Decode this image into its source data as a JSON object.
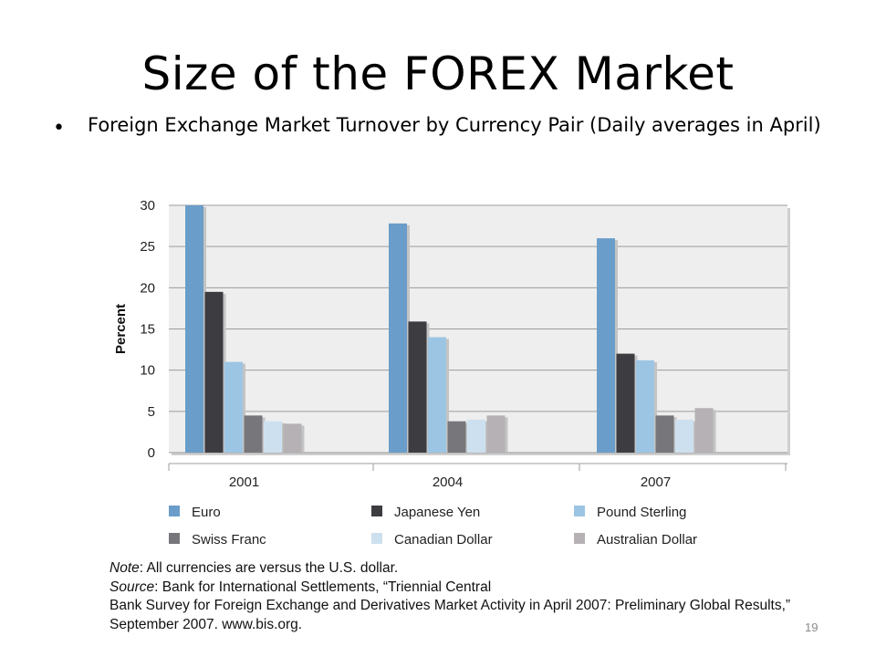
{
  "slide": {
    "title": "Size of the FOREX Market",
    "bullet": "Foreign Exchange Market Turnover by Currency Pair (Daily averages in April)",
    "note_label": "Note",
    "note_text": "All currencies are versus the U.S. dollar.",
    "source_label": "Source",
    "source_line1": "Bank for International Settlements, “Triennial Central",
    "source_line2": "Bank Survey for Foreign Exchange and Derivatives Market Activity in April 2007: Preliminary Global Results,”",
    "source_line3": "September 2007. www.bis.org.",
    "page_number": "19"
  },
  "chart_data": {
    "type": "bar",
    "title": "",
    "xlabel": "",
    "ylabel": "Percent",
    "ylim": [
      0,
      30
    ],
    "yticks": [
      0,
      5,
      10,
      15,
      20,
      25,
      30
    ],
    "grid": true,
    "legend_position": "bottom",
    "categories": [
      "2001",
      "2004",
      "2007"
    ],
    "series": [
      {
        "name": "Euro",
        "color": "#6a9dc9",
        "values": [
          30,
          27.8,
          26
        ]
      },
      {
        "name": "Japanese Yen",
        "color": "#3d3c41",
        "values": [
          19.5,
          15.9,
          12
        ]
      },
      {
        "name": "Pound Sterling",
        "color": "#9cc5e3",
        "values": [
          11,
          14,
          11.2
        ]
      },
      {
        "name": "Swiss Franc",
        "color": "#77767a",
        "values": [
          4.5,
          3.8,
          4.5
        ]
      },
      {
        "name": "Canadian Dollar",
        "color": "#cde0ef",
        "values": [
          3.8,
          4,
          4
        ]
      },
      {
        "name": "Australian Dollar",
        "color": "#b5b1b4",
        "values": [
          3.5,
          4.5,
          5.4
        ]
      }
    ]
  }
}
